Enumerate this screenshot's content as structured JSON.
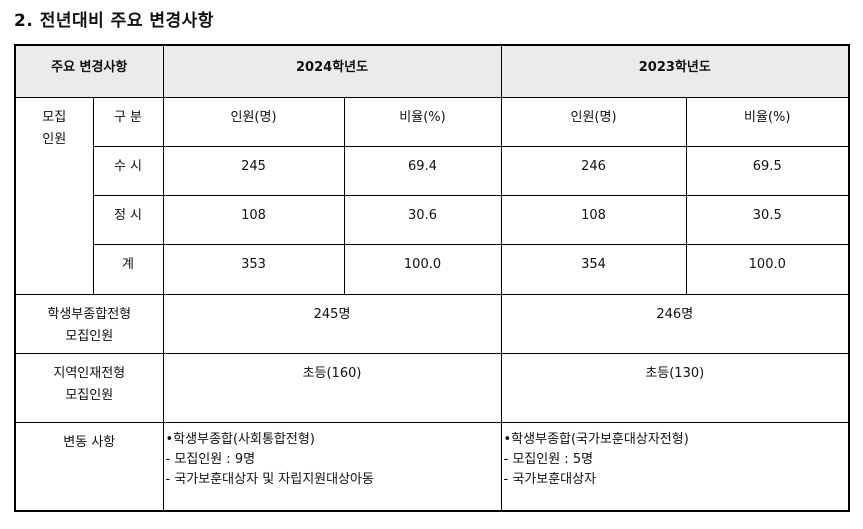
{
  "title": "2. 전년대비 주요 변경사항",
  "header": {
    "item": "주요 변경사항",
    "y2024": "2024학년도",
    "y2023": "2023학년도"
  },
  "recruit": {
    "label_line1": "모집",
    "label_line2": "인원",
    "sub_header": {
      "category": "구 분",
      "people": "인원(명)",
      "ratio": "비율(%)"
    },
    "rows": [
      {
        "category": "수 시",
        "p2024": "245",
        "r2024": "69.4",
        "p2023": "246",
        "r2023": "69.5"
      },
      {
        "category": "정 시",
        "p2024": "108",
        "r2024": "30.6",
        "p2023": "108",
        "r2023": "30.5"
      },
      {
        "category": "계",
        "p2024": "353",
        "r2024": "100.0",
        "p2023": "354",
        "r2023": "100.0"
      }
    ]
  },
  "comprehensive": {
    "label_line1": "학생부종합전형",
    "label_line2": "모집인원",
    "v2024": "245명",
    "v2023": "246명"
  },
  "regional": {
    "label_line1": "지역인재전형",
    "label_line2": "모집인원",
    "v2024": "초등(160)",
    "v2023": "초등(130)"
  },
  "changes": {
    "label": "변동 사항",
    "y2024": [
      "•학생부종합(사회통합전형)",
      "- 모집인원 : 9명",
      "- 국가보훈대상자 및 자립지원대상아동"
    ],
    "y2023": [
      "•학생부종합(국가보훈대상자전형)",
      "- 모집인원 : 5명",
      "- 국가보훈대상자"
    ]
  }
}
